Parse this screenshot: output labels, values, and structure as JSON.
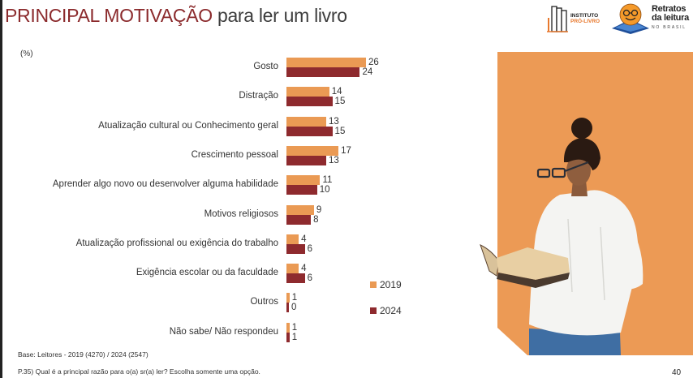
{
  "header": {
    "title_highlight": "PRINCIPAL MOTIVAÇÃO",
    "title_rest": " para ler um livro"
  },
  "logos": {
    "instituto_line1": "INSTITUTO",
    "instituto_line2": "PRÓ-LIVRO",
    "retratos_line1": "Retratos",
    "retratos_line2": "da leitura",
    "retratos_line3": "NO BRASIL"
  },
  "colors": {
    "series_2019": "#ea9a54",
    "series_2024": "#8e2a2e",
    "title_accent": "#8b2a2c",
    "panel": "#ec9a55"
  },
  "chart_data": {
    "type": "bar",
    "orientation": "horizontal",
    "title": "PRINCIPAL MOTIVAÇÃO para ler um livro",
    "unit_label": "(%)",
    "xlabel": "",
    "ylabel": "",
    "grid": false,
    "legend_position": "right",
    "categories": [
      "Gosto",
      "Distração",
      "Atualização cultural ou Conhecimento geral",
      "Crescimento pessoal",
      "Aprender algo novo ou desenvolver alguma habilidade",
      "Motivos religiosos",
      "Atualização profissional ou exigência do trabalho",
      "Exigência escolar ou da faculdade",
      "Outros",
      "Não sabe/ Não respondeu"
    ],
    "series": [
      {
        "name": "2019",
        "values": [
          26,
          14,
          13,
          17,
          11,
          9,
          4,
          4,
          1,
          1
        ]
      },
      {
        "name": "2024",
        "values": [
          24,
          15,
          15,
          13,
          10,
          8,
          6,
          6,
          0,
          1
        ]
      }
    ]
  },
  "footer": {
    "base": "Base: Leitores - 2019 (4270) / 2024 (2547)",
    "question": "P.35) Qual é a principal razão para o(a) sr(a) ler? Escolha somente uma opção.",
    "page_number": "40"
  }
}
